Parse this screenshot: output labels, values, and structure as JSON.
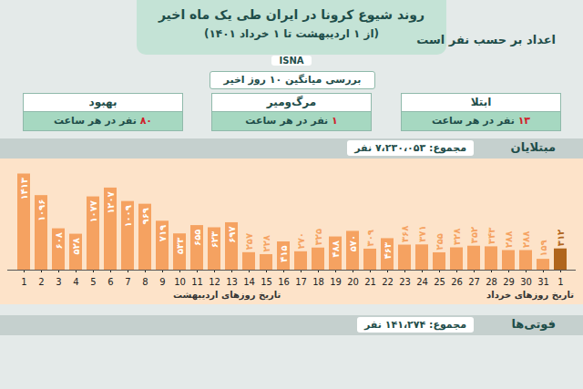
{
  "header": {
    "title": "روند شیوع کرونا در ایران طی یک ماه اخیر",
    "subtitle": "(از ۱ اردیبهشت تا ۱ خرداد ۱۴۰۱)",
    "brand": "ISNA",
    "unit_note": "اعداد بر حسب نفر است",
    "average_note": "بررسی میانگین ۱۰ روز اخیر"
  },
  "boxes": [
    {
      "title": "بهبود",
      "text": "۸۰ نفر در هر ساعت"
    },
    {
      "title": "مرگ‌ومیر",
      "text": "۱ نفر در هر ساعت"
    },
    {
      "title": "ابتلا",
      "text": "۱۳ نفر در هر ساعت"
    }
  ],
  "sections": [
    {
      "title": "مبتلایان",
      "total": "مجموع: ۷،۲۳۰،۰۵۳ نفر"
    },
    {
      "title": "فوتی‌ها",
      "total": "مجموع: ۱۴۱،۲۷۴ نفر"
    }
  ],
  "date_labels": [
    "تاریخ روزهای اردیبهشت",
    "تاریخ روزهای خرداد"
  ],
  "chart_data": {
    "type": "bar",
    "categories": [
      "1",
      "2",
      "3",
      "4",
      "5",
      "6",
      "7",
      "8",
      "9",
      "10",
      "11",
      "12",
      "13",
      "14",
      "15",
      "16",
      "17",
      "18",
      "19",
      "20",
      "21",
      "22",
      "23",
      "24",
      "25",
      "26",
      "27",
      "28",
      "29",
      "30",
      "31",
      "1"
    ],
    "values": [
      1413,
      1096,
      608,
      528,
      1077,
      1207,
      1009,
      969,
      719,
      533,
      655,
      623,
      697,
      257,
      228,
      415,
      270,
      325,
      488,
      570,
      309,
      463,
      368,
      371,
      255,
      328,
      352,
      343,
      288,
      288,
      159,
      312
    ],
    "value_labels": [
      "۱۴۱۳",
      "۱۰۹۶",
      "۶۰۸",
      "۵۲۸",
      "۱۰۷۷",
      "۱۲۰۷",
      "۱۰۰۹",
      "۹۶۹",
      "۷۱۹",
      "۵۳۳",
      "۶۵۵",
      "۶۲۳",
      "۶۹۷",
      "۲۵۷",
      "۲۲۸",
      "۴۱۵",
      "۲۷۰",
      "۳۲۵",
      "۴۸۸",
      "۵۷۰",
      "۳۰۹",
      "۴۶۳",
      "۳۶۸",
      "۳۷۱",
      "۲۵۵",
      "۳۲۸",
      "۳۵۲",
      "۳۴۳",
      "۲۸۸",
      "۲۸۸",
      "۱۵۹",
      "۳۱۲"
    ],
    "colors": [
      "#f5a261",
      "#f5a261",
      "#f5a261",
      "#f5a261",
      "#f5a261",
      "#f5a261",
      "#f5a261",
      "#f5a261",
      "#f5a261",
      "#f5a261",
      "#f5a261",
      "#f5a261",
      "#f5a261",
      "#f5a261",
      "#f5a261",
      "#f5a261",
      "#f5a261",
      "#f5a261",
      "#f5a261",
      "#f5a261",
      "#f5a261",
      "#f5a261",
      "#f5a261",
      "#f5a261",
      "#f5a261",
      "#f5a261",
      "#f5a261",
      "#f5a261",
      "#f5a261",
      "#f5a261",
      "#f5a261",
      "#b0651c"
    ],
    "ylim": [
      0,
      1500
    ],
    "data_labels": true,
    "tick_labels": "x"
  }
}
